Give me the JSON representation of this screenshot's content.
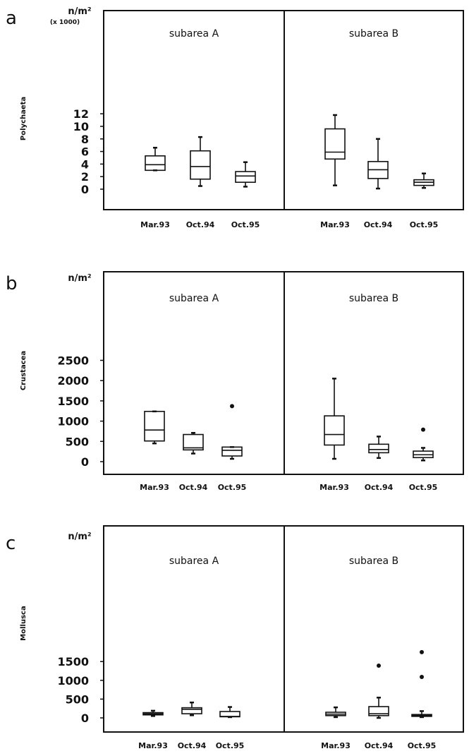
{
  "chart_data": [
    {
      "panel": "a",
      "type": "box",
      "unit_label": "n/m²",
      "unit_multiplier": "(x 1000)",
      "ylabel": "Polychaeta",
      "yticks": [
        0,
        2,
        4,
        6,
        8,
        10,
        12
      ],
      "ylim": [
        -1.2,
        13.9
      ],
      "subareas": [
        {
          "label": "subarea A",
          "boxes": [
            {
              "category": "Mar.93",
              "min": 3.0,
              "q1": 3.0,
              "median": 3.9,
              "q3": 5.3,
              "max": 6.6,
              "outliers": []
            },
            {
              "category": "Oct.94",
              "min": 0.5,
              "q1": 1.6,
              "median": 3.6,
              "q3": 6.1,
              "max": 8.3,
              "outliers": []
            },
            {
              "category": "Oct.95",
              "min": 0.4,
              "q1": 1.1,
              "median": 2.1,
              "q3": 2.8,
              "max": 4.3,
              "outliers": []
            }
          ]
        },
        {
          "label": "subarea B",
          "boxes": [
            {
              "category": "Mar.93",
              "min": 0.6,
              "q1": 4.8,
              "median": 5.9,
              "q3": 9.6,
              "max": 11.8,
              "outliers": []
            },
            {
              "category": "Oct.94",
              "min": 0.1,
              "q1": 1.7,
              "median": 3.1,
              "q3": 4.4,
              "max": 8.0,
              "outliers": []
            },
            {
              "category": "Oct.95",
              "min": 0.2,
              "q1": 0.6,
              "median": 1.1,
              "q3": 1.5,
              "max": 2.5,
              "outliers": []
            }
          ]
        }
      ]
    },
    {
      "panel": "b",
      "type": "box",
      "unit_label": "n/m²",
      "unit_multiplier": "",
      "ylabel": "Crustacea",
      "yticks": [
        0,
        500,
        1000,
        1500,
        2000,
        2500
      ],
      "ylim": [
        -125,
        2960
      ],
      "subareas": [
        {
          "label": "subarea A",
          "boxes": [
            {
              "category": "Mar.93",
              "min": 450,
              "q1": 510,
              "median": 780,
              "q3": 1240,
              "max": 1240,
              "outliers": []
            },
            {
              "category": "Oct.94",
              "min": 200,
              "q1": 290,
              "median": 340,
              "q3": 670,
              "max": 710,
              "outliers": []
            },
            {
              "category": "Oct.95",
              "min": 70,
              "q1": 140,
              "median": 280,
              "q3": 360,
              "max": 360,
              "outliers": [
                1370
              ]
            }
          ]
        },
        {
          "label": "subarea B",
          "boxes": [
            {
              "category": "Mar.93",
              "min": 70,
              "q1": 410,
              "median": 670,
              "q3": 1130,
              "max": 2050,
              "outliers": []
            },
            {
              "category": "Oct.94",
              "min": 90,
              "q1": 220,
              "median": 300,
              "q3": 430,
              "max": 620,
              "outliers": []
            },
            {
              "category": "Oct.95",
              "min": 30,
              "q1": 100,
              "median": 170,
              "q3": 260,
              "max": 340,
              "outliers": [
                790
              ]
            }
          ]
        }
      ]
    },
    {
      "panel": "c",
      "type": "box",
      "unit_label": "n/m²",
      "unit_multiplier": "",
      "ylabel": "Mollusca",
      "yticks": [
        0,
        500,
        1000,
        1500
      ],
      "ylim": [
        -95,
        1890
      ],
      "subareas": [
        {
          "label": "subarea A",
          "boxes": [
            {
              "category": "Mar.93",
              "min": 50,
              "q1": 80,
              "median": 110,
              "q3": 140,
              "max": 190,
              "outliers": []
            },
            {
              "category": "Oct.94",
              "min": 70,
              "q1": 110,
              "median": 230,
              "q3": 270,
              "max": 410,
              "outliers": []
            },
            {
              "category": "Oct.95",
              "min": 20,
              "q1": 30,
              "median": 40,
              "q3": 170,
              "max": 290,
              "outliers": []
            }
          ]
        },
        {
          "label": "subarea B",
          "boxes": [
            {
              "category": "Mar.93",
              "min": 20,
              "q1": 60,
              "median": 100,
              "q3": 150,
              "max": 280,
              "outliers": []
            },
            {
              "category": "Oct.94",
              "min": 0,
              "q1": 60,
              "median": 110,
              "q3": 300,
              "max": 540,
              "outliers": [
                1390
              ]
            },
            {
              "category": "Oct.95",
              "min": 20,
              "q1": 40,
              "median": 60,
              "q3": 90,
              "max": 180,
              "outliers": [
                1090,
                1750
              ]
            }
          ]
        }
      ]
    }
  ]
}
